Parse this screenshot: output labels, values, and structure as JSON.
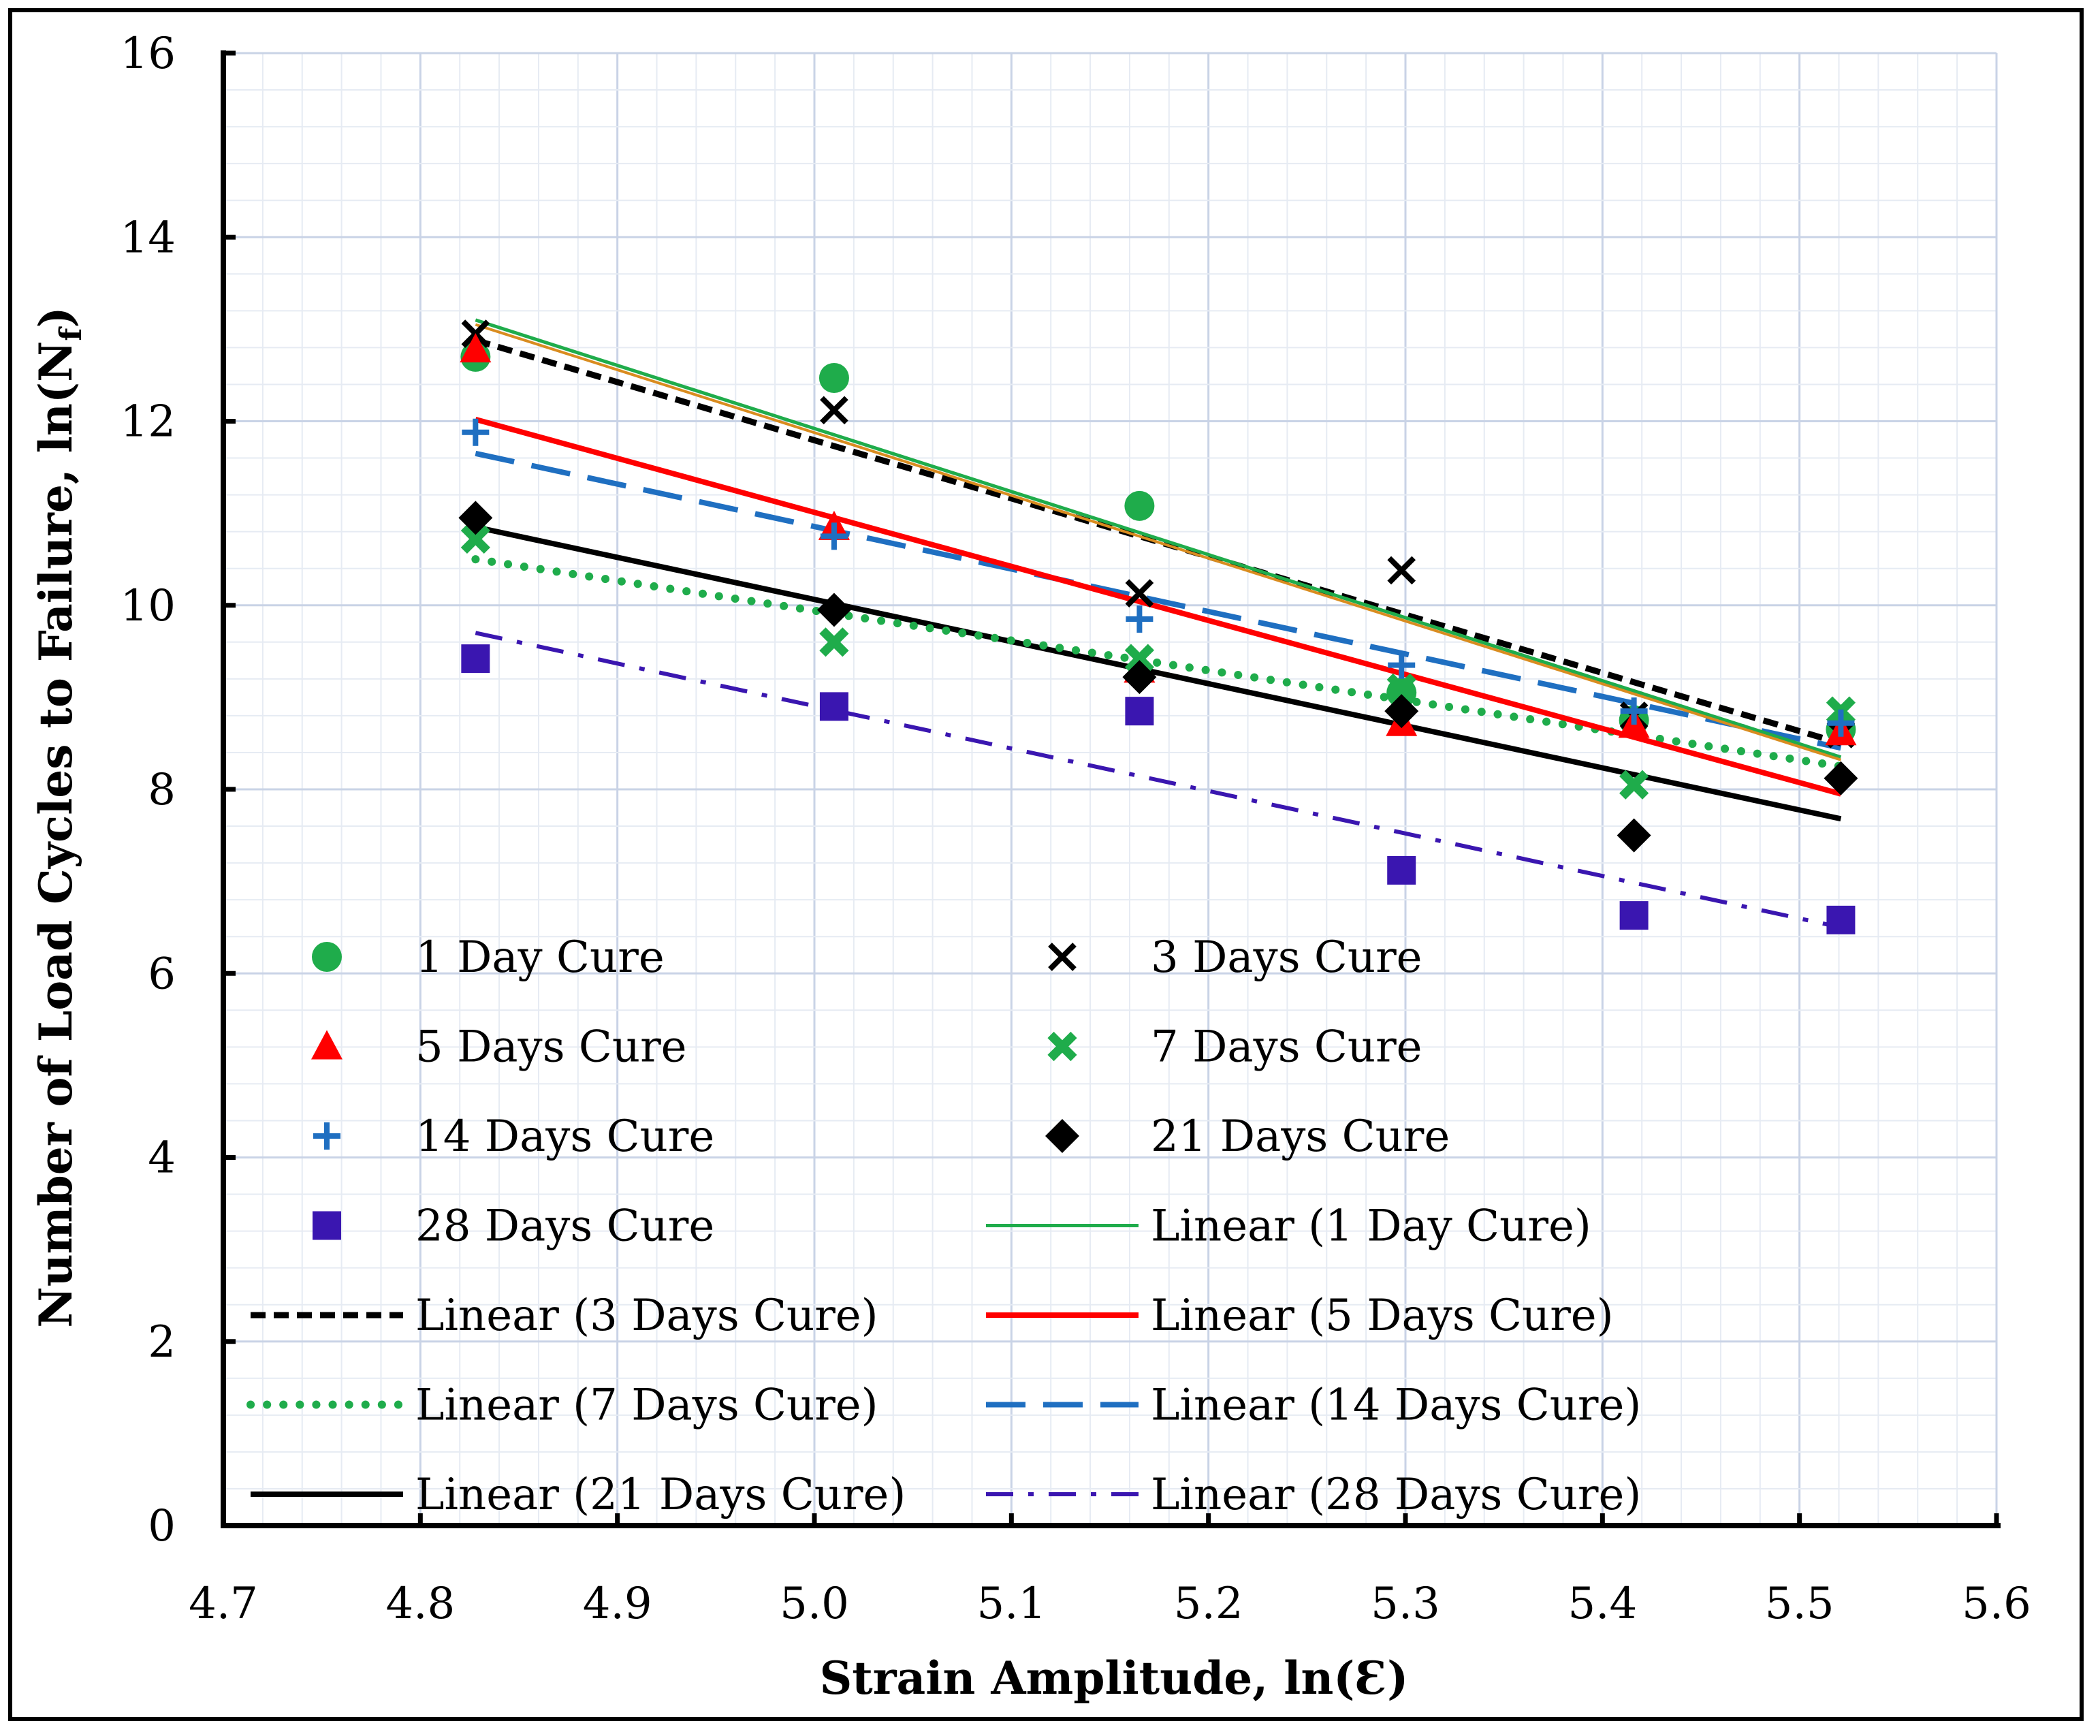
{
  "chart_data": {
    "type": "scatter",
    "title": "",
    "xlabel": "Strain Amplitude, ln(Ɛ)",
    "ylabel_main": "Number of Load Cycles to Failure, ln(N",
    "ylabel_sub": "f",
    "ylabel_end": ")",
    "xlim": [
      4.7,
      5.6
    ],
    "ylim": [
      0,
      16
    ],
    "x_ticks": [
      4.7,
      4.8,
      4.9,
      5.0,
      5.1,
      5.2,
      5.3,
      5.4,
      5.5,
      5.6
    ],
    "x_tick_labels": [
      "4.7",
      "4.8",
      "4.9",
      "5.0",
      "5.1",
      "5.2",
      "5.3",
      "5.4",
      "5.5",
      "5.6"
    ],
    "y_ticks": [
      0,
      2,
      4,
      6,
      8,
      10,
      12,
      14,
      16
    ],
    "y_tick_labels": [
      "0",
      "2",
      "4",
      "6",
      "8",
      "10",
      "12",
      "14",
      "16"
    ],
    "grid": true,
    "legend_position": "bottom-left, inside plot, two columns",
    "x": [
      4.828,
      5.01,
      5.165,
      5.298,
      5.416,
      5.521
    ],
    "series": [
      {
        "name": "1 Day Cure",
        "marker": "circle",
        "color": "#1fac4b",
        "values": [
          12.7,
          12.47,
          11.08,
          9.05,
          8.75,
          8.65
        ]
      },
      {
        "name": "3 Days Cure",
        "marker": "x",
        "color": "#000000",
        "values": [
          12.95,
          12.12,
          10.13,
          10.38,
          8.8,
          8.6
        ]
      },
      {
        "name": "5 Days Cure",
        "marker": "triangle",
        "color": "#ff0000",
        "values": [
          12.78,
          10.85,
          9.3,
          8.72,
          8.7,
          8.62
        ]
      },
      {
        "name": "7 Days Cure",
        "marker": "cross",
        "color": "#1fac4b",
        "values": [
          10.72,
          9.6,
          9.42,
          9.1,
          8.05,
          8.85
        ]
      },
      {
        "name": "14 Days Cure",
        "marker": "plus",
        "color": "#1f6fc1",
        "values": [
          11.88,
          10.75,
          9.85,
          9.35,
          8.85,
          8.72
        ]
      },
      {
        "name": "21 Days Cure",
        "marker": "diamond",
        "color": "#000000",
        "values": [
          10.95,
          9.95,
          9.22,
          8.85,
          7.5,
          8.12
        ]
      },
      {
        "name": "28 Days Cure",
        "marker": "square",
        "color": "#3a16b0",
        "values": [
          9.42,
          8.9,
          8.85,
          7.12,
          6.63,
          6.58
        ]
      }
    ],
    "trendlines": [
      {
        "name": "Linear (1 Day Cure)",
        "style": "solid-thin",
        "color": "#1fac4b",
        "x": [
          4.828,
          5.521
        ],
        "y": [
          13.1,
          8.35
        ]
      },
      {
        "name": "Linear (3 Days Cure)",
        "style": "dashed",
        "color": "#000000",
        "x": [
          4.828,
          5.521
        ],
        "y": [
          12.88,
          8.5
        ]
      },
      {
        "name": "Linear (5 Days Cure)",
        "style": "solid",
        "color": "#ff0000",
        "x": [
          4.828,
          5.521
        ],
        "y": [
          12.02,
          7.95
        ]
      },
      {
        "name": "Linear (7 Days Cure)",
        "style": "dotted",
        "color": "#1fac4b",
        "x": [
          4.828,
          5.521
        ],
        "y": [
          10.5,
          8.25
        ]
      },
      {
        "name": "Linear (14 Days Cure)",
        "style": "long-dash",
        "color": "#1f6fc1",
        "x": [
          4.828,
          5.521
        ],
        "y": [
          11.65,
          8.45
        ]
      },
      {
        "name": "Linear (21 Days Cure)",
        "style": "solid",
        "color": "#000000",
        "x": [
          4.828,
          5.521
        ],
        "y": [
          10.85,
          7.68
        ]
      },
      {
        "name": "Linear (28 Days Cure)",
        "style": "dash-dot",
        "color": "#3a16b0",
        "x": [
          4.828,
          5.521
        ],
        "y": [
          9.7,
          6.5
        ]
      }
    ],
    "extra_line": {
      "name": "",
      "color": "#d98c1f",
      "x": [
        4.828,
        5.521
      ],
      "y": [
        13.05,
        8.32
      ]
    },
    "legend": [
      {
        "label": "1 Day Cure",
        "kind": "marker",
        "ref": "1 Day Cure"
      },
      {
        "label": "3 Days Cure",
        "kind": "marker",
        "ref": "3 Days Cure"
      },
      {
        "label": "5 Days Cure",
        "kind": "marker",
        "ref": "5 Days Cure"
      },
      {
        "label": "7 Days Cure",
        "kind": "marker",
        "ref": "7 Days Cure"
      },
      {
        "label": "14 Days Cure",
        "kind": "marker",
        "ref": "14 Days Cure"
      },
      {
        "label": "21 Days Cure",
        "kind": "marker",
        "ref": "21 Days Cure"
      },
      {
        "label": "28 Days Cure",
        "kind": "marker",
        "ref": "28 Days Cure"
      },
      {
        "label": "Linear (1 Day Cure)",
        "kind": "line",
        "ref": "Linear (1 Day Cure)"
      },
      {
        "label": "Linear (3 Days Cure)",
        "kind": "line",
        "ref": "Linear (3 Days Cure)"
      },
      {
        "label": "Linear (5 Days Cure)",
        "kind": "line",
        "ref": "Linear (5 Days Cure)"
      },
      {
        "label": "Linear (7 Days Cure)",
        "kind": "line",
        "ref": "Linear (7 Days Cure)"
      },
      {
        "label": "Linear (14 Days Cure)",
        "kind": "line",
        "ref": "Linear (14 Days Cure)"
      },
      {
        "label": "Linear (21 Days Cure)",
        "kind": "line",
        "ref": "Linear (21 Days Cure)"
      },
      {
        "label": "Linear (28 Days Cure)",
        "kind": "line",
        "ref": "Linear (28 Days Cure)"
      }
    ]
  }
}
